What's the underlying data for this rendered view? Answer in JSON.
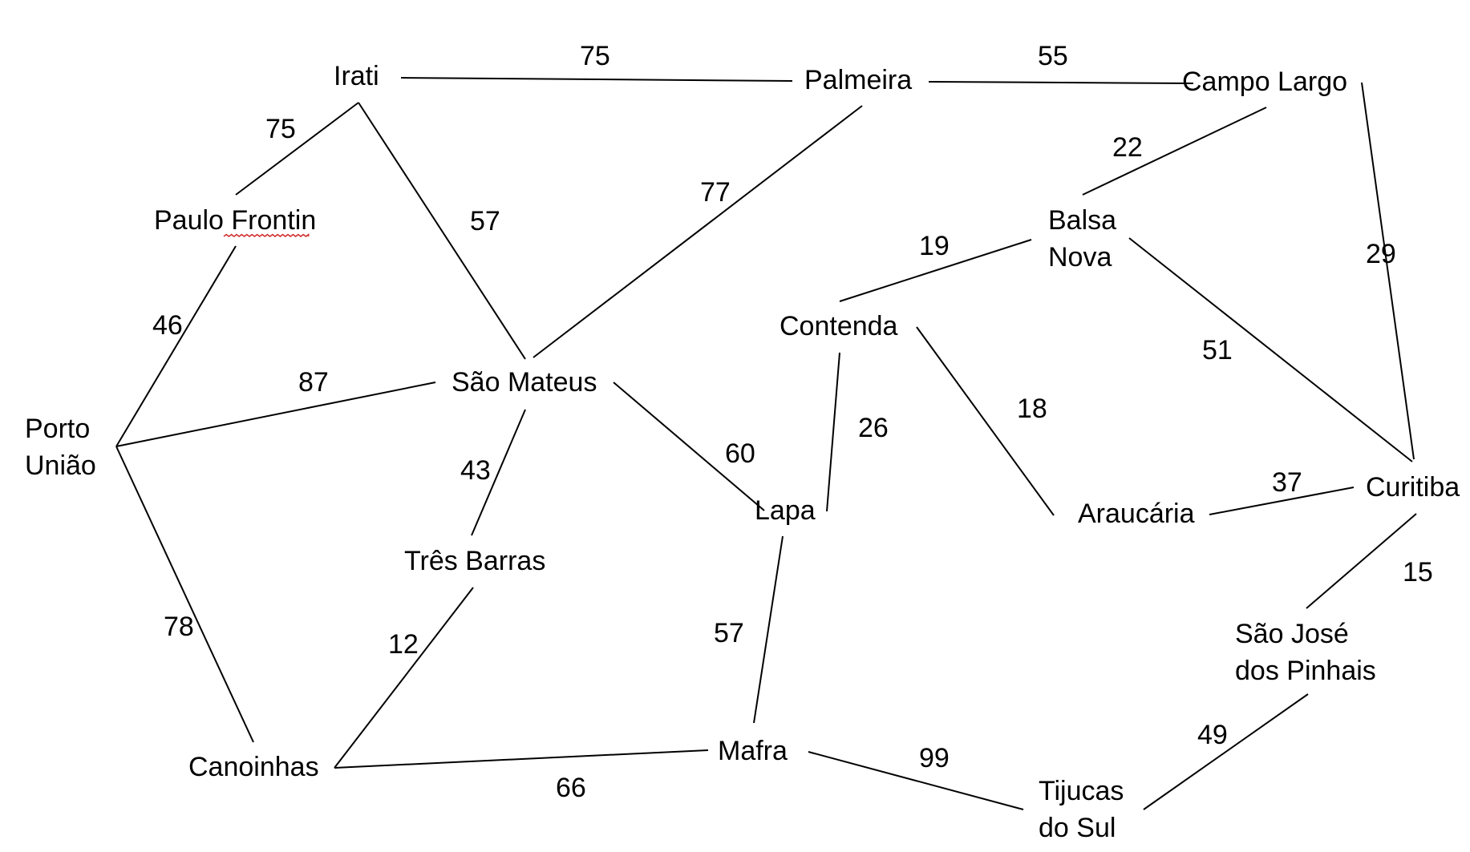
{
  "colors": {
    "line": "#000000",
    "text": "#000000",
    "spellcheck_underline": "#d32f2f"
  },
  "nodes": [
    {
      "id": "irati",
      "lines": [
        "Irati"
      ]
    },
    {
      "id": "palmeira",
      "lines": [
        "Palmeira"
      ]
    },
    {
      "id": "campo-largo",
      "lines": [
        "Campo Largo"
      ]
    },
    {
      "id": "paulo-frontin",
      "lines": [
        "Paulo Frontin"
      ],
      "spellcheck_underline_word": "Frontin"
    },
    {
      "id": "balsa-nova",
      "lines": [
        "Balsa",
        "Nova"
      ]
    },
    {
      "id": "contenda",
      "lines": [
        "Contenda"
      ]
    },
    {
      "id": "sao-mateus",
      "lines": [
        "São Mateus"
      ]
    },
    {
      "id": "porto-uniao",
      "lines": [
        "Porto",
        "União"
      ]
    },
    {
      "id": "lapa",
      "lines": [
        "Lapa"
      ]
    },
    {
      "id": "araucaria",
      "lines": [
        "Araucária"
      ]
    },
    {
      "id": "curitiba",
      "lines": [
        "Curitiba"
      ]
    },
    {
      "id": "tres-barras",
      "lines": [
        "Três Barras"
      ]
    },
    {
      "id": "sao-jose-dos-pinhais",
      "lines": [
        "São José",
        "dos Pinhais"
      ]
    },
    {
      "id": "canoinhas",
      "lines": [
        "Canoinhas"
      ]
    },
    {
      "id": "mafra",
      "lines": [
        "Mafra"
      ]
    },
    {
      "id": "tijucas-do-sul",
      "lines": [
        "Tijucas",
        "do Sul"
      ]
    }
  ],
  "edges": [
    {
      "id": "irati-palmeira",
      "from": "Irati",
      "to": "Palmeira",
      "weight": "75"
    },
    {
      "id": "palmeira-campo-largo",
      "from": "Palmeira",
      "to": "Campo Largo",
      "weight": "55"
    },
    {
      "id": "irati-paulo-frontin",
      "from": "Irati",
      "to": "Paulo Frontin",
      "weight": "75"
    },
    {
      "id": "irati-sao-mateus",
      "from": "Irati",
      "to": "São Mateus",
      "weight": "57"
    },
    {
      "id": "palmeira-sao-mateus",
      "from": "Palmeira",
      "to": "São Mateus",
      "weight": "77"
    },
    {
      "id": "campo-largo-balsa-nova",
      "from": "Campo Largo",
      "to": "Balsa Nova",
      "weight": "22"
    },
    {
      "id": "campo-largo-curitiba",
      "from": "Campo Largo",
      "to": "Curitiba",
      "weight": "29"
    },
    {
      "id": "balsa-nova-contenda",
      "from": "Balsa Nova",
      "to": "Contenda",
      "weight": "19"
    },
    {
      "id": "balsa-nova-curitiba",
      "from": "Balsa Nova",
      "to": "Curitiba",
      "weight": "51"
    },
    {
      "id": "paulo-frontin-porto-uniao",
      "from": "Paulo Frontin",
      "to": "Porto União",
      "weight": "46"
    },
    {
      "id": "porto-uniao-sao-mateus",
      "from": "Porto União",
      "to": "São Mateus",
      "weight": "87"
    },
    {
      "id": "contenda-lapa",
      "from": "Contenda",
      "to": "Lapa",
      "weight": "26"
    },
    {
      "id": "contenda-araucaria",
      "from": "Contenda",
      "to": "Araucária",
      "weight": "18"
    },
    {
      "id": "sao-mateus-lapa",
      "from": "São Mateus",
      "to": "Lapa",
      "weight": "60"
    },
    {
      "id": "sao-mateus-tres-barras",
      "from": "São Mateus",
      "to": "Três Barras",
      "weight": "43"
    },
    {
      "id": "araucaria-curitiba",
      "from": "Araucária",
      "to": "Curitiba",
      "weight": "37"
    },
    {
      "id": "curitiba-sao-jose",
      "from": "Curitiba",
      "to": "São José dos Pinhais",
      "weight": "15"
    },
    {
      "id": "porto-uniao-canoinhas",
      "from": "Porto União",
      "to": "Canoinhas",
      "weight": "78"
    },
    {
      "id": "tres-barras-canoinhas",
      "from": "Três Barras",
      "to": "Canoinhas",
      "weight": "12"
    },
    {
      "id": "lapa-mafra",
      "from": "Lapa",
      "to": "Mafra",
      "weight": "57"
    },
    {
      "id": "sao-jose-tijucas",
      "from": "São José dos Pinhais",
      "to": "Tijucas do Sul",
      "weight": "49"
    },
    {
      "id": "canoinhas-mafra",
      "from": "Canoinhas",
      "to": "Mafra",
      "weight": "66"
    },
    {
      "id": "mafra-tijucas",
      "from": "Mafra",
      "to": "Tijucas do Sul",
      "weight": "99"
    }
  ]
}
